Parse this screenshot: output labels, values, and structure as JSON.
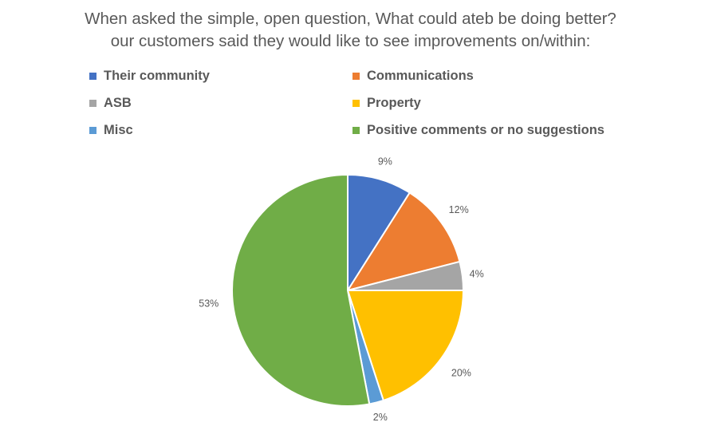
{
  "chart_data": {
    "type": "pie",
    "title_lines": [
      "When asked the simple, open question, What could ateb be doing better?",
      "our customers said they would like to see improvements on/within:"
    ],
    "legend_position": "top",
    "slices": [
      {
        "name": "Their community",
        "value": 9,
        "label": "9%",
        "color": "#4472C4"
      },
      {
        "name": "Communications",
        "value": 12,
        "label": "12%",
        "color": "#ED7D31"
      },
      {
        "name": "ASB",
        "value": 4,
        "label": "4%",
        "color": "#A5A5A5"
      },
      {
        "name": "Property",
        "value": 20,
        "label": "20%",
        "color": "#FFC000"
      },
      {
        "name": "Misc",
        "value": 2,
        "label": "2%",
        "color": "#5B9BD5"
      },
      {
        "name": "Positive comments or no suggestions",
        "value": 53,
        "label": "53%",
        "color": "#70AD47"
      }
    ]
  }
}
